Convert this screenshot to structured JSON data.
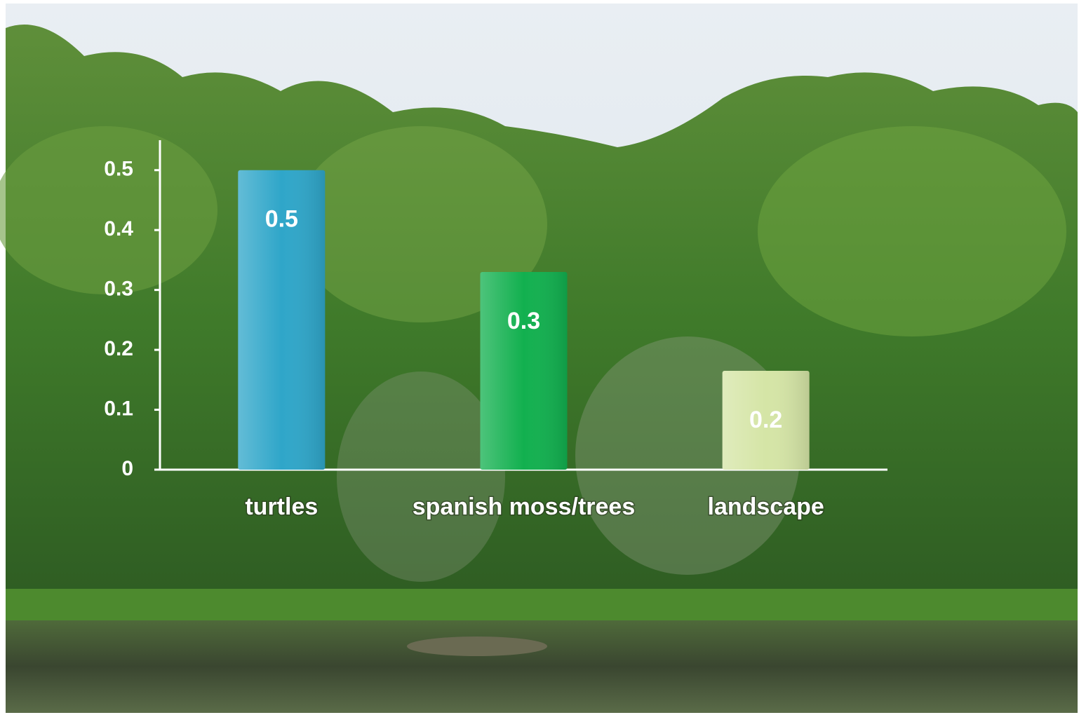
{
  "chart_data": {
    "type": "bar",
    "categories": [
      "turtles",
      "spanish moss/trees",
      "landscape"
    ],
    "values": [
      0.5,
      0.33,
      0.165
    ],
    "value_labels": [
      "0.5",
      "0.3",
      "0.2"
    ],
    "colors": [
      "#2fa6c9",
      "#12b04f",
      "#d5e5a6"
    ],
    "ylim": [
      0,
      0.55
    ],
    "yticks": [
      0,
      0.1,
      0.2,
      0.3,
      0.4,
      0.5
    ]
  }
}
